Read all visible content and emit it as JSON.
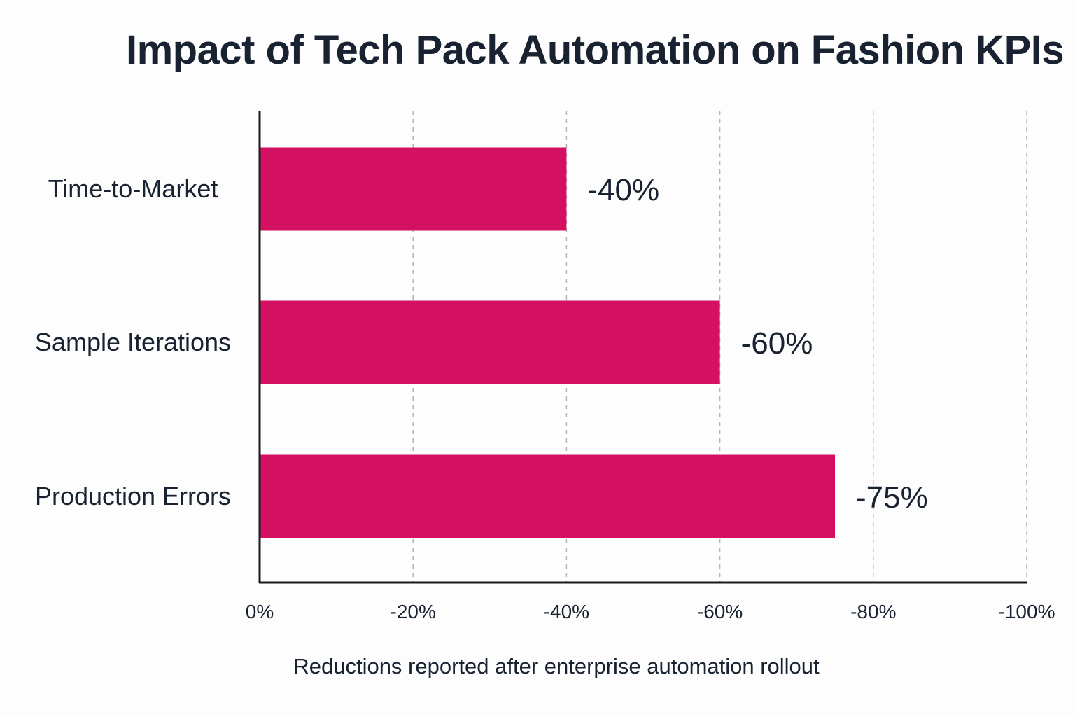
{
  "chart_data": {
    "type": "bar",
    "orientation": "horizontal",
    "title": "Impact of Tech Pack Automation on Fashion KPIs",
    "xlabel": "Reductions reported after enterprise automation rollout",
    "ylabel": "",
    "categories": [
      "Time-to-Market",
      "Sample Iterations",
      "Production Errors"
    ],
    "values": [
      -40,
      -60,
      -75
    ],
    "data_labels": [
      "-40%",
      "-60%",
      "-75%"
    ],
    "xlim": [
      0,
      -100
    ],
    "x_ticks": [
      0,
      -20,
      -40,
      -60,
      -80,
      -100
    ],
    "x_tick_labels": [
      "0%",
      "-20%",
      "-40%",
      "-60%",
      "-80%",
      "-100%"
    ],
    "grid": "vertical dashed",
    "legend": "none",
    "colors": {
      "bar": "#d41063",
      "text": "#182230",
      "axis": "#1a1a1a",
      "grid": "#b5b5b5"
    }
  }
}
